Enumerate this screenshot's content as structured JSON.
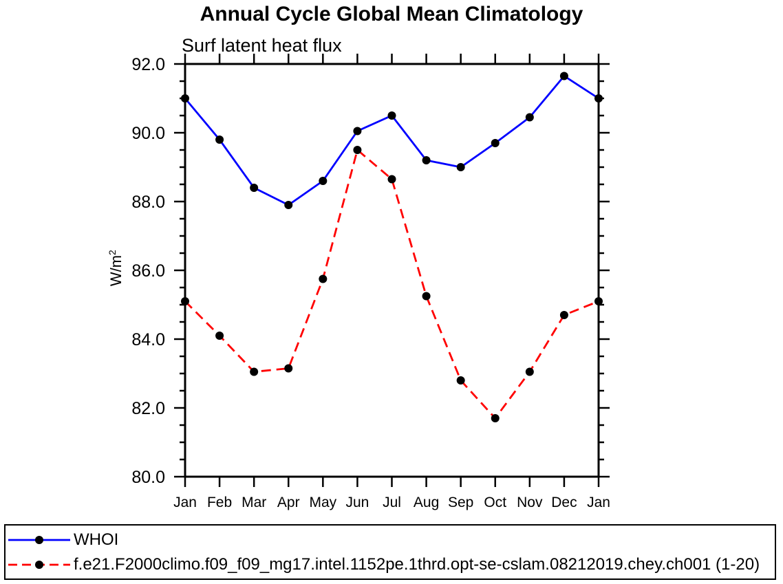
{
  "page": {
    "background": "#ffffff"
  },
  "chart_data": {
    "type": "line",
    "title": "Annual Cycle Global Mean Climatology",
    "subtitle": "Surf latent heat flux",
    "ylabel": "W/m²",
    "ylabel_base": "W/m",
    "ylabel_exponent": "2",
    "categories": [
      "Jan",
      "Feb",
      "Mar",
      "Apr",
      "May",
      "Jun",
      "Jul",
      "Aug",
      "Sep",
      "Oct",
      "Nov",
      "Dec",
      "Jan"
    ],
    "series": [
      {
        "name": "WHOI",
        "color": "#0000ff",
        "line_style": "solid",
        "marker": "filled-circle",
        "marker_color": "#000000",
        "values": [
          91.0,
          89.8,
          88.4,
          87.9,
          88.6,
          90.05,
          90.5,
          89.2,
          89.0,
          89.7,
          90.45,
          91.65,
          91.0
        ]
      },
      {
        "name": "f.e21.F2000climo.f09_f09_mg17.intel.1152pe.1thrd.opt-se-cslam.08212019.chey.ch001 (1-20)",
        "color": "#ff0000",
        "line_style": "dashed",
        "marker": "filled-circle",
        "marker_color": "#000000",
        "values": [
          85.1,
          84.1,
          83.05,
          83.15,
          85.75,
          89.5,
          88.65,
          85.25,
          82.8,
          81.7,
          83.05,
          84.7,
          85.1
        ]
      }
    ],
    "ylim": [
      80.0,
      92.0
    ],
    "ytick_values": [
      92,
      90,
      88,
      86,
      84,
      82,
      80
    ],
    "ytick_labels": [
      "92.0",
      "90.0",
      "88.0",
      "86.0",
      "84.0",
      "82.0",
      "80.0"
    ],
    "ytick_minor_step": 0.5,
    "grid": false,
    "legend_position": "bottom-box",
    "axis_color": "#000000",
    "text_color": "#000000"
  }
}
